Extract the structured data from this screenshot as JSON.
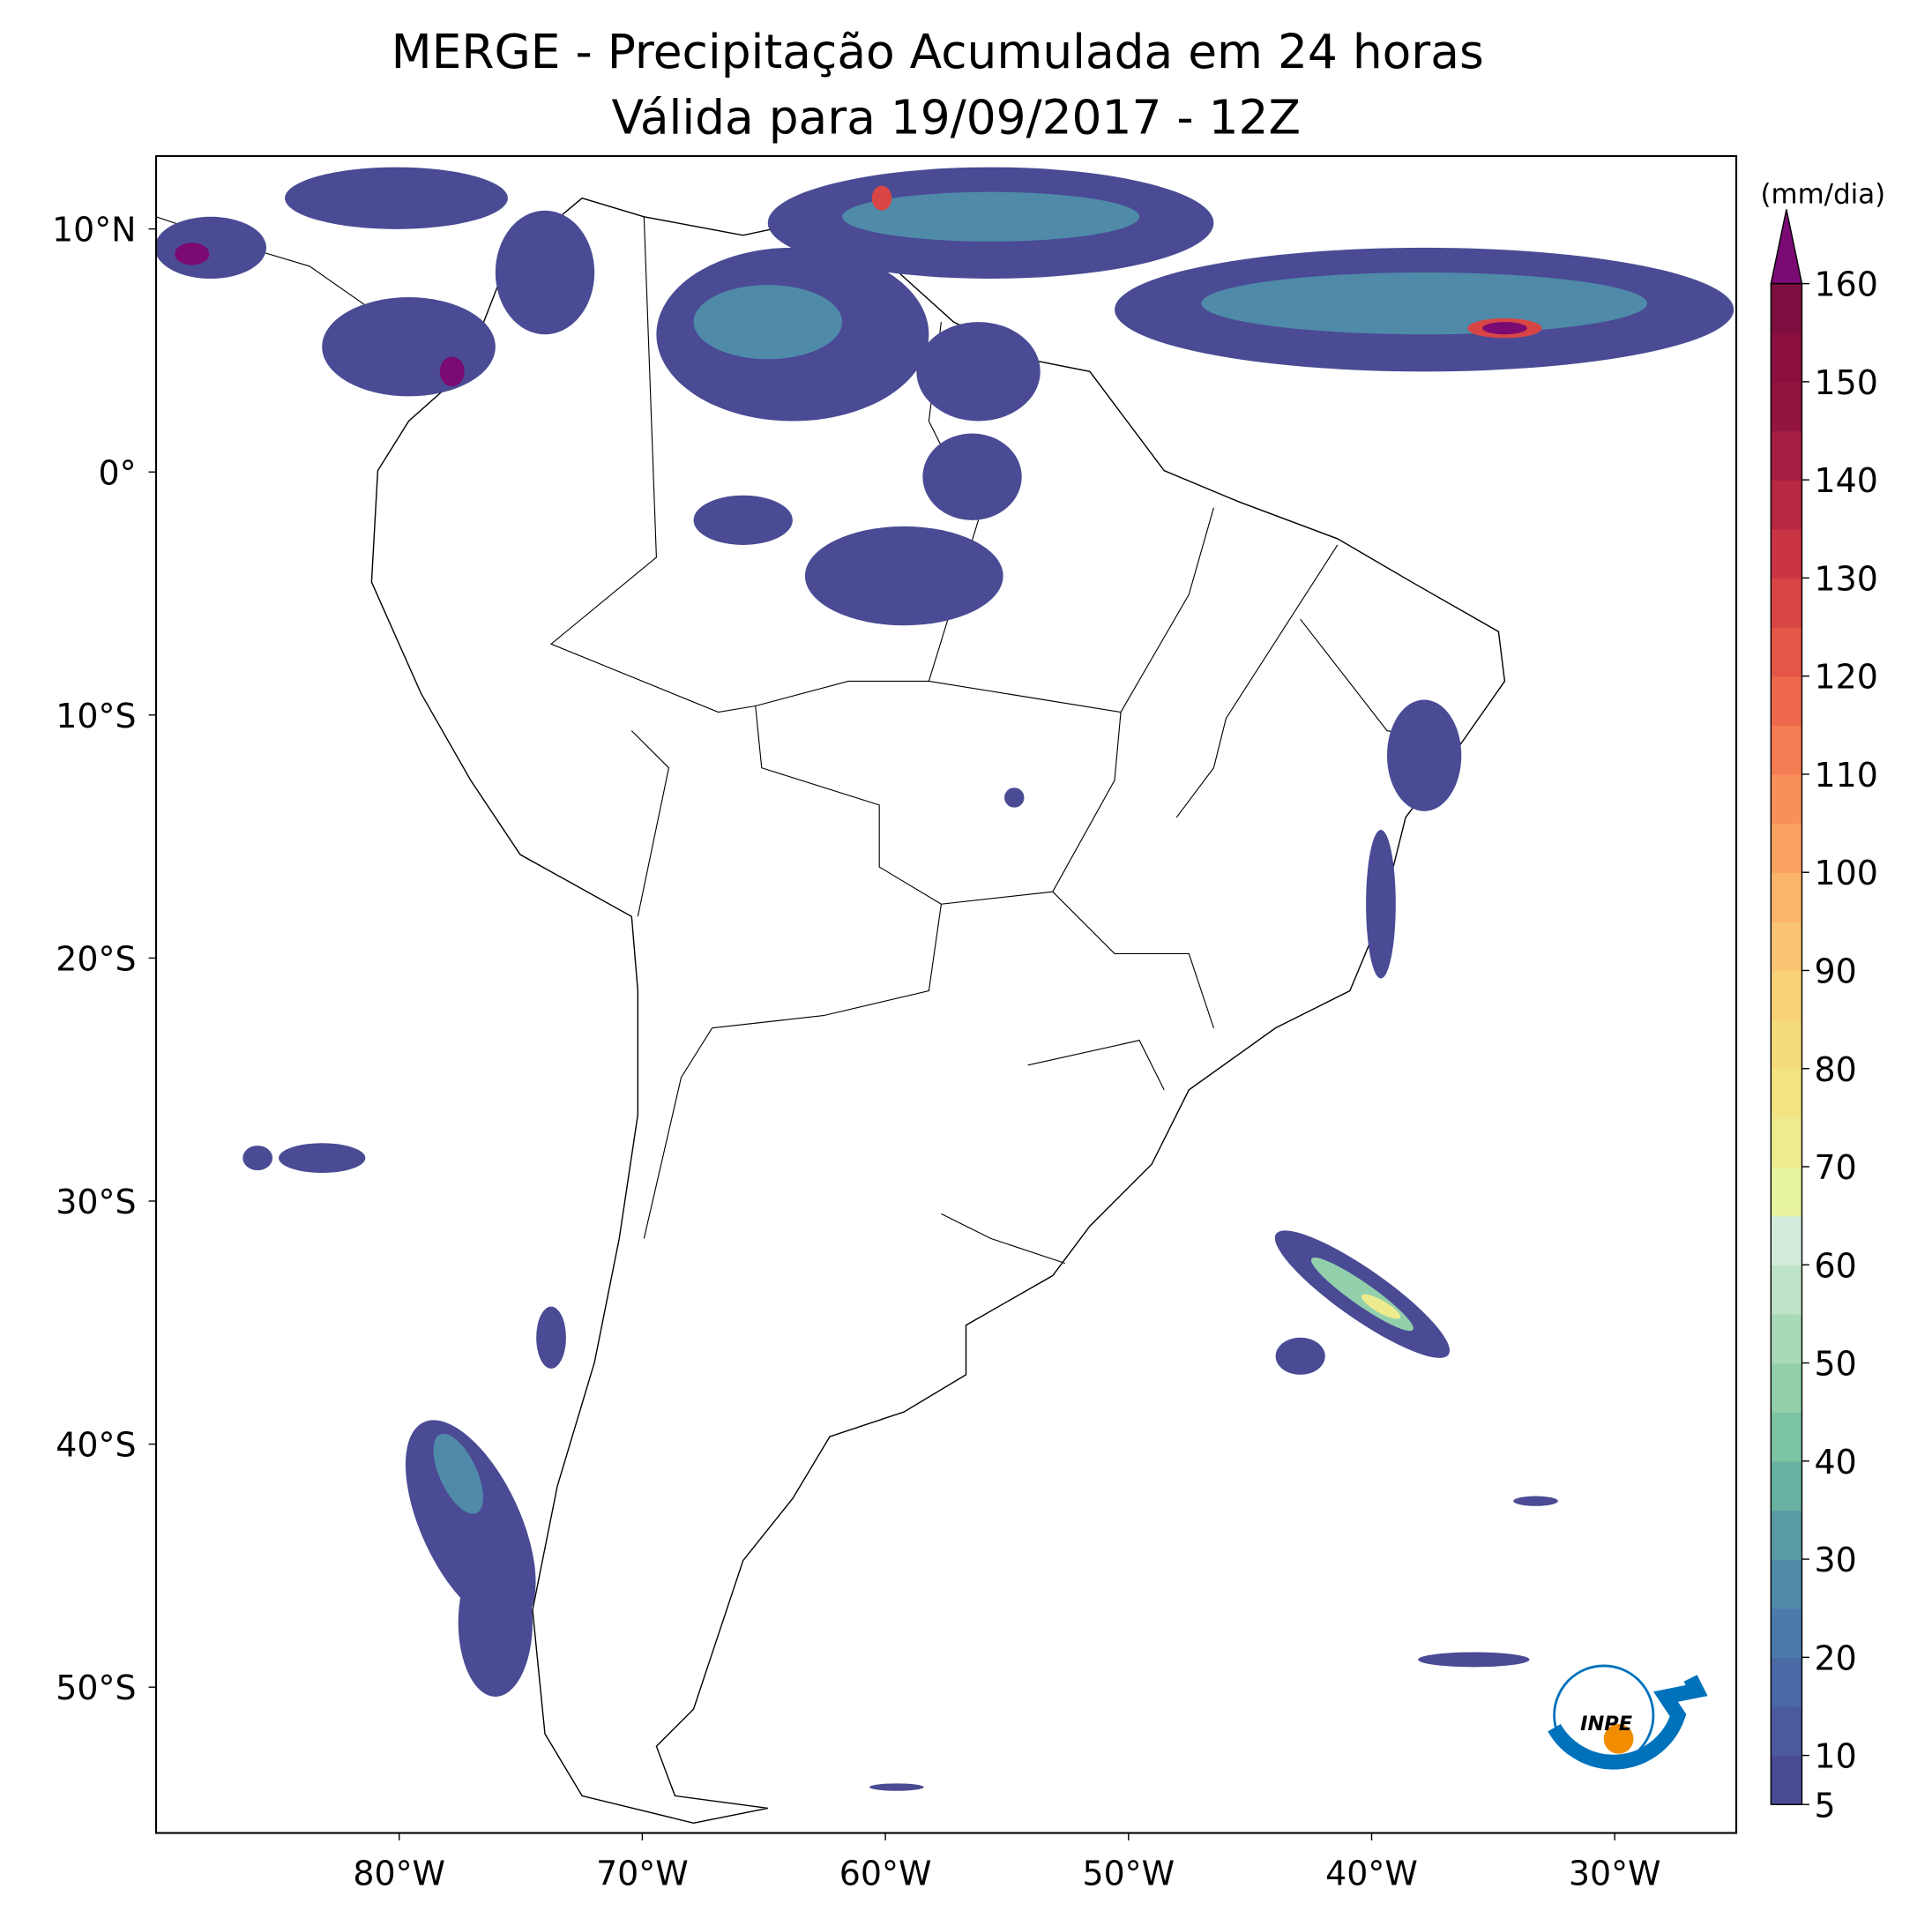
{
  "title": "MERGE - Precipitação Acumulada em 24 horas",
  "subtitle": "Válida para 19/09/2017 - 12Z",
  "map": {
    "xlim": [
      -90,
      -25
    ],
    "ylim": [
      -56,
      13
    ],
    "xticks": [
      {
        "value": -80,
        "label": "80°W"
      },
      {
        "value": -70,
        "label": "70°W"
      },
      {
        "value": -60,
        "label": "60°W"
      },
      {
        "value": -50,
        "label": "50°W"
      },
      {
        "value": -40,
        "label": "40°W"
      },
      {
        "value": -30,
        "label": "30°W"
      }
    ],
    "yticks": [
      {
        "value": 10,
        "label": "10°N"
      },
      {
        "value": 0,
        "label": "0°"
      },
      {
        "value": -10,
        "label": "10°S"
      },
      {
        "value": -20,
        "label": "20°S"
      },
      {
        "value": -30,
        "label": "30°S"
      },
      {
        "value": -40,
        "label": "40°S"
      },
      {
        "value": -50,
        "label": "50°S"
      }
    ]
  },
  "colorbar": {
    "label": "(mm/dia)",
    "lim": [
      5,
      160
    ],
    "ticks": [
      5,
      10,
      20,
      30,
      40,
      50,
      60,
      70,
      80,
      90,
      100,
      110,
      120,
      130,
      140,
      150,
      160
    ],
    "step": 5,
    "colors": [
      "#4a4b94",
      "#4a5a9c",
      "#4b6aa5",
      "#4c7aab",
      "#4f8aa9",
      "#5a9ca5",
      "#68b0a0",
      "#7dc4a4",
      "#92d0ac",
      "#a8d9b8",
      "#bfe3c8",
      "#d3ebdb",
      "#e8f3a0",
      "#eeeb8f",
      "#f3e483",
      "#f6db7e",
      "#f8d178",
      "#fac572",
      "#fbb56a",
      "#fba362",
      "#f8905a",
      "#f47c52",
      "#ee694c",
      "#e45647",
      "#d84545",
      "#ca3544",
      "#b92843",
      "#a61d42",
      "#921541",
      "#8b0e3e",
      "#7d0e40"
    ],
    "extend_color": "#7b0a73"
  },
  "logo_text": "INPE"
}
